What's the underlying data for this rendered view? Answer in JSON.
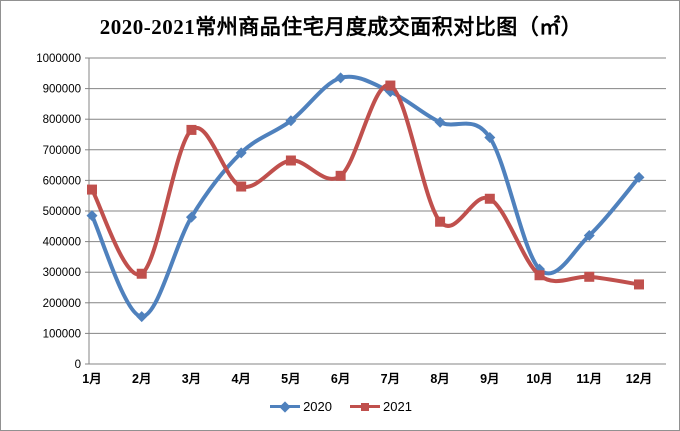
{
  "window": {
    "title": "2020-2021常州商品住宅月度成交面积对比图（㎡）"
  },
  "chart_data": {
    "type": "line",
    "title": "2020-2021常州商品住宅月度成交面积对比图（㎡）",
    "categories": [
      "1月",
      "2月",
      "3月",
      "4月",
      "5月",
      "6月",
      "7月",
      "8月",
      "9月",
      "10月",
      "11月",
      "12月"
    ],
    "series": [
      {
        "name": "2020",
        "color": "#4F81BD",
        "marker": "diamond",
        "values": [
          485000,
          155000,
          480000,
          690000,
          795000,
          935000,
          890000,
          790000,
          740000,
          310000,
          420000,
          610000
        ]
      },
      {
        "name": "2021",
        "color": "#C0504D",
        "marker": "square",
        "values": [
          570000,
          295000,
          765000,
          580000,
          665000,
          615000,
          910000,
          465000,
          540000,
          290000,
          285000,
          260000
        ]
      }
    ],
    "xlabel": "",
    "ylabel": "",
    "ylim": [
      0,
      1000000
    ],
    "ytick_step": 100000,
    "grid": true,
    "smooth": true,
    "legend_position": "bottom"
  },
  "colors": {
    "grid": "#848484",
    "axis": "#848484",
    "text": "#000000",
    "background": "#FFFFFF",
    "frame_border": "#919191"
  }
}
